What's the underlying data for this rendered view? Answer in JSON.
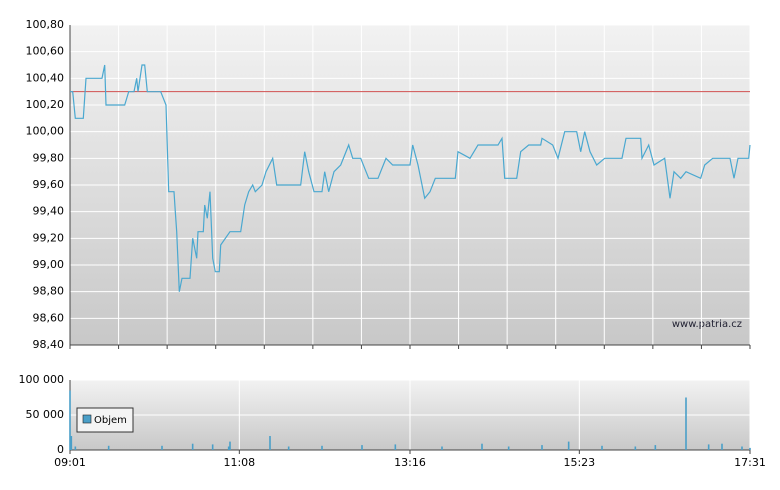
{
  "chart_data": [
    {
      "type": "line",
      "watermark": "www.patria.cz",
      "x": [
        "09:01",
        "09:03",
        "09:05",
        "09:11",
        "09:13",
        "09:25",
        "09:27",
        "09:28",
        "09:42",
        "09:45",
        "09:49",
        "09:51",
        "09:52",
        "09:55",
        "09:57",
        "09:59",
        "10:09",
        "10:13",
        "10:15",
        "10:19",
        "10:20",
        "10:21",
        "10:23",
        "10:25",
        "10:31",
        "10:33",
        "10:36",
        "10:37",
        "10:41",
        "10:42",
        "10:44",
        "10:46",
        "10:48",
        "10:50",
        "10:53",
        "10:54",
        "11:01",
        "11:09",
        "11:12",
        "11:15",
        "11:18",
        "11:20",
        "11:25",
        "11:28",
        "11:33",
        "11:36",
        "11:54",
        "11:57",
        "12:00",
        "12:04",
        "12:10",
        "12:12",
        "12:15",
        "12:19",
        "12:24",
        "12:30",
        "12:33",
        "12:39",
        "12:45",
        "12:52",
        "12:58",
        "13:03",
        "13:16",
        "13:18",
        "13:22",
        "13:27",
        "13:31",
        "13:35",
        "13:50",
        "13:52",
        "14:01",
        "14:07",
        "14:22",
        "14:25",
        "14:27",
        "14:36",
        "14:39",
        "14:45",
        "14:54",
        "14:55",
        "15:03",
        "15:07",
        "15:12",
        "15:21",
        "15:24",
        "15:27",
        "15:31",
        "15:36",
        "15:42",
        "15:55",
        "15:58",
        "16:09",
        "16:10",
        "16:15",
        "16:19",
        "16:27",
        "16:31",
        "16:34",
        "16:39",
        "16:43",
        "16:54",
        "16:57",
        "17:03",
        "17:16",
        "17:19",
        "17:22",
        "17:30",
        "17:31"
      ],
      "series": [
        {
          "color": "#4aa8d0",
          "values": [
            100.3,
            100.3,
            100.1,
            100.1,
            100.4,
            100.4,
            100.5,
            100.2,
            100.2,
            100.3,
            100.3,
            100.4,
            100.3,
            100.5,
            100.5,
            100.3,
            100.3,
            100.2,
            99.55,
            99.55,
            99.4,
            99.25,
            98.8,
            98.9,
            98.9,
            99.2,
            99.05,
            99.25,
            99.25,
            99.45,
            99.35,
            99.55,
            99.05,
            98.95,
            98.95,
            99.15,
            99.25,
            99.25,
            99.45,
            99.55,
            99.6,
            99.55,
            99.6,
            99.7,
            99.8,
            99.6,
            99.6,
            99.85,
            99.7,
            99.55,
            99.55,
            99.7,
            99.55,
            99.7,
            99.75,
            99.9,
            99.8,
            99.8,
            99.65,
            99.65,
            99.8,
            99.75,
            99.75,
            99.9,
            99.75,
            99.5,
            99.55,
            99.65,
            99.65,
            99.85,
            99.8,
            99.9,
            99.9,
            99.95,
            99.65,
            99.65,
            99.85,
            99.9,
            99.9,
            99.95,
            99.9,
            99.8,
            100.0,
            100.0,
            99.85,
            100.0,
            99.85,
            99.75,
            99.8,
            99.8,
            99.95,
            99.95,
            99.8,
            99.9,
            99.75,
            99.8,
            99.5,
            99.7,
            99.65,
            99.7,
            99.65,
            99.75,
            99.8,
            99.8,
            99.65,
            99.8,
            99.8,
            99.9
          ]
        }
      ],
      "reference": {
        "value": 100.3,
        "color": "#d05050"
      },
      "xlim": [
        "09:01",
        "17:31"
      ],
      "ylim": [
        98.4,
        100.8
      ],
      "yticks": [
        {
          "value": 98.4,
          "label": "98,40"
        },
        {
          "value": 98.6,
          "label": "98,60"
        },
        {
          "value": 98.8,
          "label": "98,80"
        },
        {
          "value": 99.0,
          "label": "99,00"
        },
        {
          "value": 99.2,
          "label": "99,20"
        },
        {
          "value": 99.4,
          "label": "99,40"
        },
        {
          "value": 99.6,
          "label": "99,60"
        },
        {
          "value": 99.8,
          "label": "99,80"
        },
        {
          "value": 100.0,
          "label": "100,00"
        },
        {
          "value": 100.2,
          "label": "100,20"
        },
        {
          "value": 100.4,
          "label": "100,40"
        },
        {
          "value": 100.6,
          "label": "100,60"
        },
        {
          "value": 100.8,
          "label": "100,80"
        }
      ],
      "grid": true
    },
    {
      "type": "bar",
      "x": [
        "09:01",
        "09:02",
        "09:05",
        "09:30",
        "10:10",
        "10:33",
        "10:48",
        "11:00",
        "11:01",
        "11:31",
        "11:45",
        "12:10",
        "12:40",
        "13:05",
        "13:40",
        "14:10",
        "14:30",
        "14:55",
        "15:15",
        "15:40",
        "16:05",
        "16:20",
        "16:43",
        "17:00",
        "17:10",
        "17:25",
        "17:31"
      ],
      "series": [
        {
          "name": "Objem",
          "color": "#4a9fc8",
          "values": [
            85000,
            20000,
            5000,
            6000,
            6000,
            9000,
            8000,
            5000,
            12000,
            20000,
            5000,
            6000,
            7000,
            8000,
            5000,
            9000,
            5000,
            7000,
            12000,
            6000,
            5000,
            7000,
            75000,
            8000,
            9000,
            5000,
            3000
          ]
        }
      ],
      "xlim": [
        "09:01",
        "17:31"
      ],
      "xticks": [
        "09:01",
        "11:08",
        "13:16",
        "15:23",
        "17:31"
      ],
      "ylim": [
        0,
        100000
      ],
      "yticks": [
        0,
        {
          "value": 50000,
          "label": "50 000"
        },
        {
          "value": 100000,
          "label": "100 000"
        }
      ],
      "grid": true
    }
  ]
}
